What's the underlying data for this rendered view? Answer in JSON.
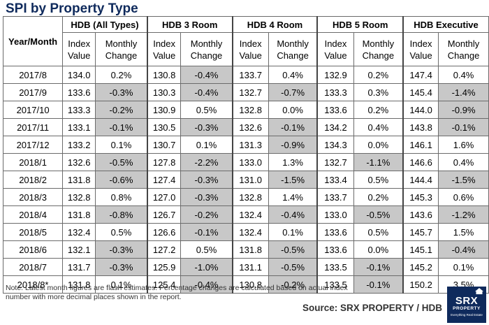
{
  "title": "SPI by Property Type",
  "table": {
    "corner_label": "Year/Month",
    "groups": [
      "HDB (All Types)",
      "HDB 3 Room",
      "HDB 4 Room",
      "HDB 5 Room",
      "HDB Executive"
    ],
    "sub_index": "Index\nValue",
    "sub_change": "Monthly\nChange",
    "rows": [
      {
        "month": "2017/8",
        "cells": [
          [
            "134.0",
            "0.2%",
            false
          ],
          [
            "130.8",
            "-0.4%",
            true
          ],
          [
            "133.7",
            "0.4%",
            false
          ],
          [
            "132.9",
            "0.2%",
            false
          ],
          [
            "147.4",
            "0.4%",
            false
          ]
        ]
      },
      {
        "month": "2017/9",
        "cells": [
          [
            "133.6",
            "-0.3%",
            true
          ],
          [
            "130.3",
            "-0.4%",
            true
          ],
          [
            "132.7",
            "-0.7%",
            true
          ],
          [
            "133.3",
            "0.3%",
            false
          ],
          [
            "145.4",
            "-1.4%",
            true
          ]
        ]
      },
      {
        "month": "2017/10",
        "cells": [
          [
            "133.3",
            "-0.2%",
            true
          ],
          [
            "130.9",
            "0.5%",
            false
          ],
          [
            "132.8",
            "0.0%",
            false
          ],
          [
            "133.6",
            "0.2%",
            false
          ],
          [
            "144.0",
            "-0.9%",
            true
          ]
        ]
      },
      {
        "month": "2017/11",
        "cells": [
          [
            "133.1",
            "-0.1%",
            true
          ],
          [
            "130.5",
            "-0.3%",
            true
          ],
          [
            "132.6",
            "-0.1%",
            true
          ],
          [
            "134.2",
            "0.4%",
            false
          ],
          [
            "143.8",
            "-0.1%",
            true
          ]
        ]
      },
      {
        "month": "2017/12",
        "cells": [
          [
            "133.2",
            "0.1%",
            false
          ],
          [
            "130.7",
            "0.1%",
            false
          ],
          [
            "131.3",
            "-0.9%",
            true
          ],
          [
            "134.3",
            "0.0%",
            false
          ],
          [
            "146.1",
            "1.6%",
            false
          ]
        ]
      },
      {
        "month": "2018/1",
        "cells": [
          [
            "132.6",
            "-0.5%",
            true
          ],
          [
            "127.8",
            "-2.2%",
            true
          ],
          [
            "133.0",
            "1.3%",
            false
          ],
          [
            "132.7",
            "-1.1%",
            true
          ],
          [
            "146.6",
            "0.4%",
            false
          ]
        ]
      },
      {
        "month": "2018/2",
        "cells": [
          [
            "131.8",
            "-0.6%",
            true
          ],
          [
            "127.4",
            "-0.3%",
            true
          ],
          [
            "131.0",
            "-1.5%",
            true
          ],
          [
            "133.4",
            "0.5%",
            false
          ],
          [
            "144.4",
            "-1.5%",
            true
          ]
        ]
      },
      {
        "month": "2018/3",
        "cells": [
          [
            "132.8",
            "0.8%",
            false
          ],
          [
            "127.0",
            "-0.3%",
            true
          ],
          [
            "132.8",
            "1.4%",
            false
          ],
          [
            "133.7",
            "0.2%",
            false
          ],
          [
            "145.3",
            "0.6%",
            false
          ]
        ]
      },
      {
        "month": "2018/4",
        "cells": [
          [
            "131.8",
            "-0.8%",
            true
          ],
          [
            "126.7",
            "-0.2%",
            true
          ],
          [
            "132.4",
            "-0.4%",
            true
          ],
          [
            "133.0",
            "-0.5%",
            true
          ],
          [
            "143.6",
            "-1.2%",
            true
          ]
        ]
      },
      {
        "month": "2018/5",
        "cells": [
          [
            "132.4",
            "0.5%",
            false
          ],
          [
            "126.6",
            "-0.1%",
            true
          ],
          [
            "132.4",
            "0.1%",
            false
          ],
          [
            "133.6",
            "0.5%",
            false
          ],
          [
            "145.7",
            "1.5%",
            false
          ]
        ]
      },
      {
        "month": "2018/6",
        "cells": [
          [
            "132.1",
            "-0.3%",
            true
          ],
          [
            "127.2",
            "0.5%",
            false
          ],
          [
            "131.8",
            "-0.5%",
            true
          ],
          [
            "133.6",
            "0.0%",
            false
          ],
          [
            "145.1",
            "-0.4%",
            true
          ]
        ]
      },
      {
        "month": "2018/7",
        "cells": [
          [
            "131.7",
            "-0.3%",
            true
          ],
          [
            "125.9",
            "-1.0%",
            true
          ],
          [
            "131.1",
            "-0.5%",
            true
          ],
          [
            "133.5",
            "-0.1%",
            true
          ],
          [
            "145.2",
            "0.1%",
            false
          ]
        ]
      },
      {
        "month": "2018/8*",
        "cells": [
          [
            "131.8",
            "0.1%",
            false
          ],
          [
            "125.4",
            "-0.4%",
            true
          ],
          [
            "130.8",
            "-0.2%",
            true
          ],
          [
            "133.5",
            "-0.1%",
            true
          ],
          [
            "150.2",
            "3.5%",
            false
          ]
        ]
      }
    ]
  },
  "note": "Note: Latest month figures are flash estimates. Percentage changes are calculated based on actual index number with more decimal places shown in the report.",
  "source": "Source:  SRX PROPERTY / HDB",
  "logo": {
    "line1": "SRX",
    "line2": "PROPERTY",
    "line3": "Everything Real Estate"
  },
  "colors": {
    "title": "#0f2a5c",
    "shade": "#c8c8c8",
    "logo_bg": "#0f2a5c"
  }
}
